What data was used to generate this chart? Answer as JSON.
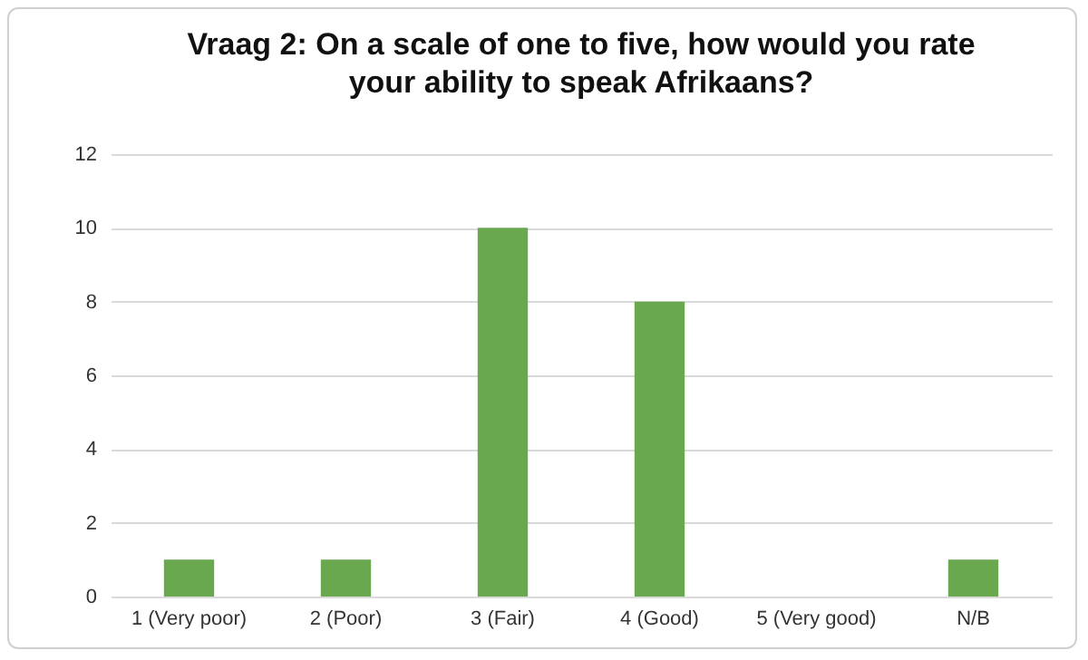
{
  "chart_data": {
    "type": "bar",
    "title": "Vraag 2: On a scale of one to five, how would you rate\nyour ability to speak Afrikaans?",
    "categories": [
      "1 (Very poor)",
      "2 (Poor)",
      "3 (Fair)",
      "4 (Good)",
      "5 (Very good)",
      "N/B"
    ],
    "values": [
      1,
      1,
      10,
      8,
      0,
      1
    ],
    "color": "#6aa84f",
    "ylim": [
      0,
      12
    ],
    "yticks": [
      0,
      2,
      4,
      6,
      8,
      10,
      12
    ],
    "grid": "y"
  }
}
